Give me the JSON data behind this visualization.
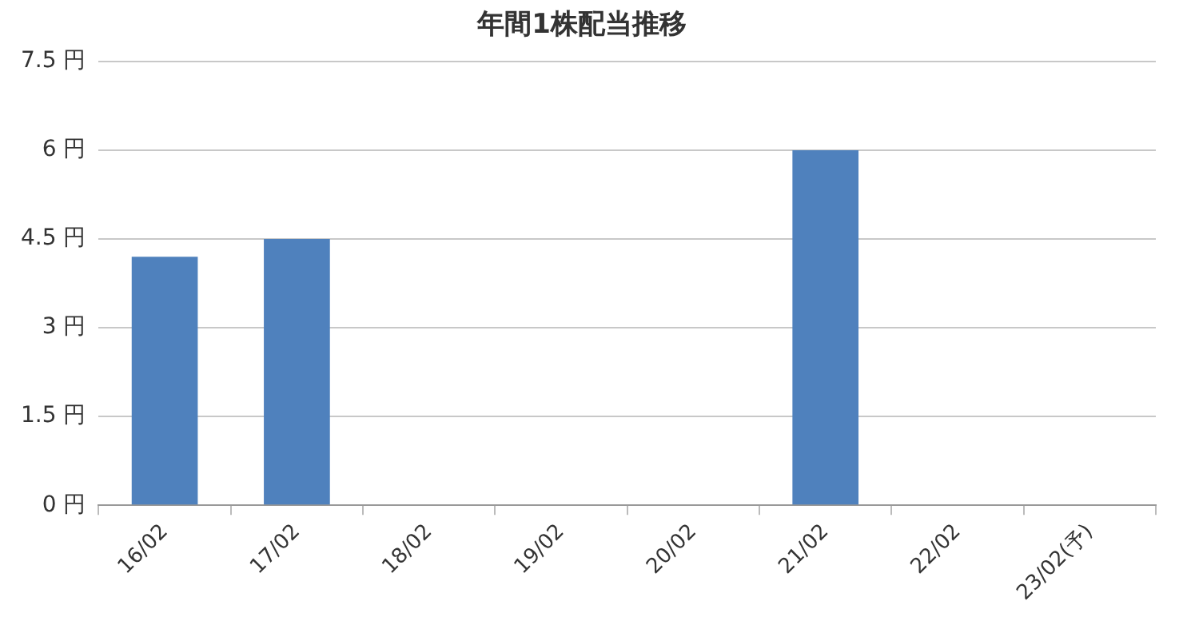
{
  "chart_data": {
    "type": "bar",
    "title": "年間1株配当推移",
    "categories": [
      "16/02",
      "17/02",
      "18/02",
      "19/02",
      "20/02",
      "21/02",
      "22/02",
      "23/02(予)"
    ],
    "values": [
      4.2,
      4.5,
      0,
      0,
      0,
      6,
      0,
      0
    ],
    "color": "#4f81bd",
    "ylim": [
      0,
      7.5
    ],
    "yticks": [
      {
        "value": 0,
        "label": "0 円"
      },
      {
        "value": 1.5,
        "label": "1.5 円"
      },
      {
        "value": 3,
        "label": "3 円"
      },
      {
        "value": 4.5,
        "label": "4.5 円"
      },
      {
        "value": 6,
        "label": "6 円"
      },
      {
        "value": 7.5,
        "label": "7.5 円"
      }
    ],
    "grid": "y"
  }
}
